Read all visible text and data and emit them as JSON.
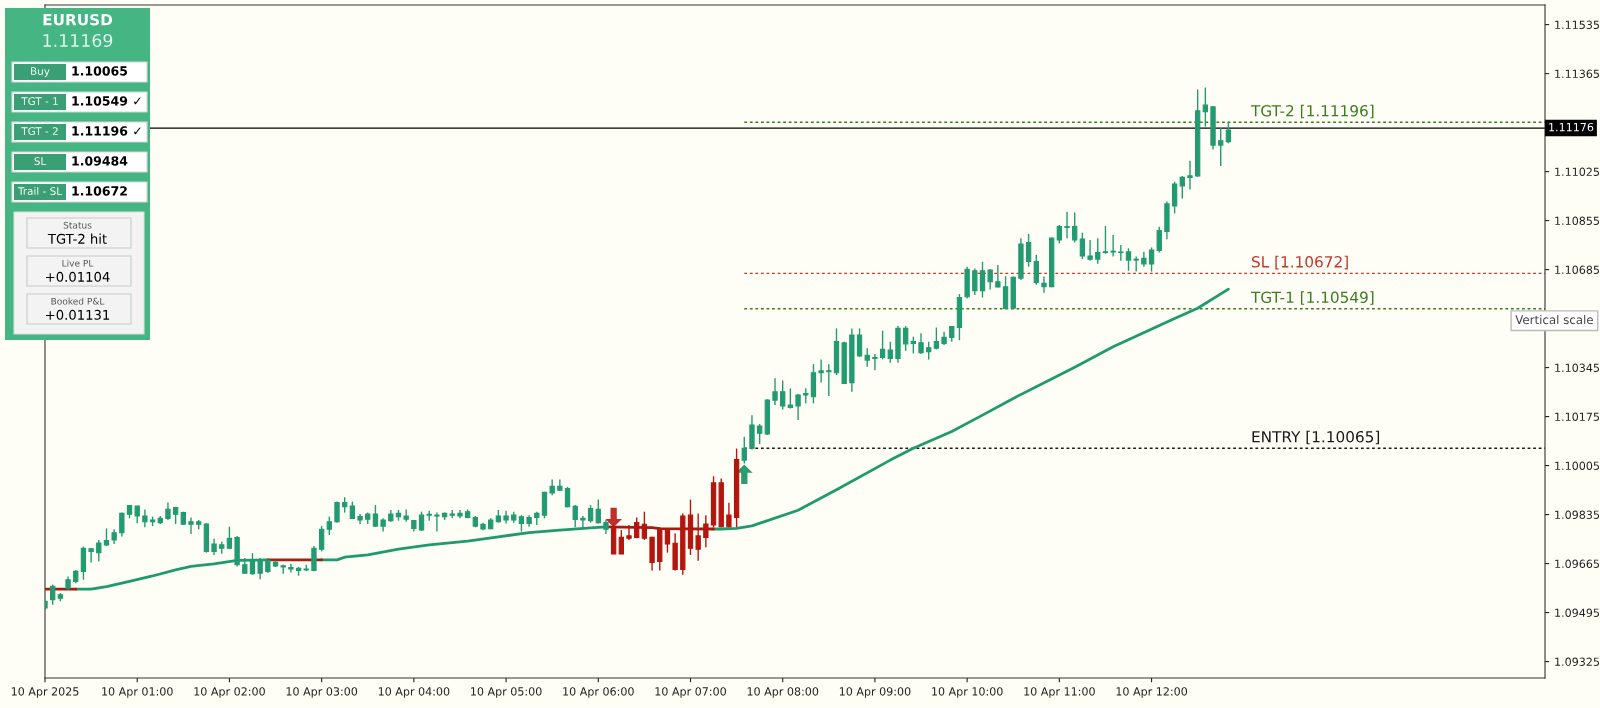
{
  "chart_data": [
    {
      "type": "other",
      "title": "EURUSD",
      "subtitle": "1.11169",
      "categories": [
        "Buy",
        "TGT - 1",
        "TGT - 2",
        "SL",
        "Trail - SL"
      ],
      "value_labels": [
        "1.10065",
        "1.10549 ✓",
        "1.11196 ✓",
        "1.09484",
        "1.10672"
      ],
      "annotations": [
        "Status",
        "TGT-2 hit",
        "Live PL",
        "+0.01104",
        "Booked P&L",
        "+0.01131"
      ]
    },
    {
      "type": "candlestick",
      "x": [
        "2025-04-10T00:00",
        "2025-04-10T00:05",
        "2025-04-10T00:10",
        "2025-04-10T00:15",
        "2025-04-10T00:20",
        "2025-04-10T00:25",
        "2025-04-10T00:30",
        "2025-04-10T00:35",
        "2025-04-10T00:40",
        "2025-04-10T00:45",
        "2025-04-10T00:50",
        "2025-04-10T00:55",
        "2025-04-10T01:00",
        "2025-04-10T01:05",
        "2025-04-10T01:10",
        "2025-04-10T01:15",
        "2025-04-10T01:20",
        "2025-04-10T01:25",
        "2025-04-10T01:30",
        "2025-04-10T01:35",
        "2025-04-10T01:40",
        "2025-04-10T01:45",
        "2025-04-10T01:50",
        "2025-04-10T01:55",
        "2025-04-10T02:00",
        "2025-04-10T02:05",
        "2025-04-10T02:10",
        "2025-04-10T02:15",
        "2025-04-10T02:20",
        "2025-04-10T02:25",
        "2025-04-10T02:30",
        "2025-04-10T02:35",
        "2025-04-10T02:40",
        "2025-04-10T02:45",
        "2025-04-10T02:50",
        "2025-04-10T02:55",
        "2025-04-10T03:00",
        "2025-04-10T03:05",
        "2025-04-10T03:10",
        "2025-04-10T03:15",
        "2025-04-10T03:20",
        "2025-04-10T03:25",
        "2025-04-10T03:30",
        "2025-04-10T03:35",
        "2025-04-10T03:40",
        "2025-04-10T03:45",
        "2025-04-10T03:50",
        "2025-04-10T03:55",
        "2025-04-10T04:00",
        "2025-04-10T04:05",
        "2025-04-10T04:10",
        "2025-04-10T04:15",
        "2025-04-10T04:20",
        "2025-04-10T04:25",
        "2025-04-10T04:30",
        "2025-04-10T04:35",
        "2025-04-10T04:40",
        "2025-04-10T04:45",
        "2025-04-10T04:50",
        "2025-04-10T04:55",
        "2025-04-10T05:00",
        "2025-04-10T05:05",
        "2025-04-10T05:10",
        "2025-04-10T05:15",
        "2025-04-10T05:20",
        "2025-04-10T05:25",
        "2025-04-10T05:30",
        "2025-04-10T05:35",
        "2025-04-10T05:40",
        "2025-04-10T05:45",
        "2025-04-10T05:50",
        "2025-04-10T05:55",
        "2025-04-10T06:00",
        "2025-04-10T06:05",
        "2025-04-10T06:10",
        "2025-04-10T06:15",
        "2025-04-10T06:20",
        "2025-04-10T06:25",
        "2025-04-10T06:30",
        "2025-04-10T06:35",
        "2025-04-10T06:40",
        "2025-04-10T06:45",
        "2025-04-10T06:50",
        "2025-04-10T06:55",
        "2025-04-10T07:00",
        "2025-04-10T07:05",
        "2025-04-10T07:10",
        "2025-04-10T07:15",
        "2025-04-10T07:20",
        "2025-04-10T07:25",
        "2025-04-10T07:30",
        "2025-04-10T07:35",
        "2025-04-10T07:40",
        "2025-04-10T07:45",
        "2025-04-10T07:50",
        "2025-04-10T07:55",
        "2025-04-10T08:00",
        "2025-04-10T08:05",
        "2025-04-10T08:10",
        "2025-04-10T08:15",
        "2025-04-10T08:20",
        "2025-04-10T08:25",
        "2025-04-10T08:30",
        "2025-04-10T08:35",
        "2025-04-10T08:40",
        "2025-04-10T08:45",
        "2025-04-10T08:50",
        "2025-04-10T08:55",
        "2025-04-10T09:00",
        "2025-04-10T09:05",
        "2025-04-10T09:10",
        "2025-04-10T09:15",
        "2025-04-10T09:20",
        "2025-04-10T09:25",
        "2025-04-10T09:30",
        "2025-04-10T09:35",
        "2025-04-10T09:40",
        "2025-04-10T09:45",
        "2025-04-10T09:50",
        "2025-04-10T09:55",
        "2025-04-10T10:00",
        "2025-04-10T10:05",
        "2025-04-10T10:10",
        "2025-04-10T10:15",
        "2025-04-10T10:20",
        "2025-04-10T10:25",
        "2025-04-10T10:30",
        "2025-04-10T10:35",
        "2025-04-10T10:40",
        "2025-04-10T10:45",
        "2025-04-10T10:50",
        "2025-04-10T10:55",
        "2025-04-10T11:00",
        "2025-04-10T11:05",
        "2025-04-10T11:10",
        "2025-04-10T11:15",
        "2025-04-10T11:20",
        "2025-04-10T11:25",
        "2025-04-10T11:30",
        "2025-04-10T11:35",
        "2025-04-10T11:40",
        "2025-04-10T11:45",
        "2025-04-10T11:50",
        "2025-04-10T11:55",
        "2025-04-10T12:00",
        "2025-04-10T12:05",
        "2025-04-10T12:10",
        "2025-04-10T12:15",
        "2025-04-10T12:20",
        "2025-04-10T12:25",
        "2025-04-10T12:30",
        "2025-04-10T12:35",
        "2025-04-10T12:40",
        "2025-04-10T12:45",
        "2025-04-10T12:50"
      ],
      "ohlc": [
        [
          1.09511,
          1.0954,
          1.09505,
          1.09534
        ],
        [
          1.0954,
          1.09592,
          1.09522,
          1.09586
        ],
        [
          1.09545,
          1.09563,
          1.09534,
          1.09557
        ],
        [
          1.0958,
          1.0962,
          1.09574,
          1.09609
        ],
        [
          1.09603,
          1.09643,
          1.09597,
          1.09638
        ],
        [
          1.09638,
          1.09724,
          1.09609,
          1.09718
        ],
        [
          1.09707,
          1.09718,
          1.09669,
          1.09716
        ],
        [
          1.09703,
          1.09747,
          1.09672,
          1.09736
        ],
        [
          1.0973,
          1.09787,
          1.09726,
          1.09745
        ],
        [
          1.09747,
          1.09784,
          1.09733,
          1.09772
        ],
        [
          1.09772,
          1.09842,
          1.09759,
          1.09839
        ],
        [
          1.09836,
          1.09868,
          1.09822,
          1.09866
        ],
        [
          1.0983,
          1.09865,
          1.09805,
          1.09865
        ],
        [
          1.0981,
          1.09853,
          1.09791,
          1.0983
        ],
        [
          1.0981,
          1.09828,
          1.09795,
          1.09816
        ],
        [
          1.09807,
          1.0983,
          1.09802,
          1.09822
        ],
        [
          1.09822,
          1.09877,
          1.09816,
          1.09853
        ],
        [
          1.09836,
          1.09862,
          1.09802,
          1.09859
        ],
        [
          1.09802,
          1.09845,
          1.09799,
          1.09842
        ],
        [
          1.09802,
          1.09825,
          1.09768,
          1.0981
        ],
        [
          1.09802,
          1.09816,
          1.09784,
          1.0981
        ],
        [
          1.09707,
          1.09805,
          1.09703,
          1.09802
        ],
        [
          1.09707,
          1.09751,
          1.09695,
          1.09733
        ],
        [
          1.09718,
          1.09741,
          1.09699,
          1.0973
        ],
        [
          1.09718,
          1.09793,
          1.09715,
          1.09753
        ],
        [
          1.09661,
          1.09761,
          1.09655,
          1.09755
        ],
        [
          1.09632,
          1.09684,
          1.0963,
          1.09661
        ],
        [
          1.0963,
          1.09701,
          1.09626,
          1.09678
        ],
        [
          1.09632,
          1.09684,
          1.09611,
          1.09678
        ],
        [
          1.09638,
          1.0968,
          1.09632,
          1.09676
        ],
        [
          1.09657,
          1.09676,
          1.09653,
          1.09669
        ],
        [
          1.09653,
          1.09661,
          1.0963,
          1.09657
        ],
        [
          1.09646,
          1.09664,
          1.09634,
          1.09651
        ],
        [
          1.09641,
          1.09653,
          1.09623,
          1.09649
        ],
        [
          1.09643,
          1.09661,
          1.09638,
          1.09646
        ],
        [
          1.09641,
          1.09726,
          1.09638,
          1.09718
        ],
        [
          1.09715,
          1.09795,
          1.09707,
          1.09784
        ],
        [
          1.09784,
          1.09828,
          1.09764,
          1.0981
        ],
        [
          1.0981,
          1.0988,
          1.09807,
          1.09877
        ],
        [
          1.09862,
          1.09895,
          1.09842,
          1.09877
        ],
        [
          1.09822,
          1.0988,
          1.09819,
          1.09865
        ],
        [
          1.09816,
          1.09837,
          1.09802,
          1.09828
        ],
        [
          1.09819,
          1.09842,
          1.09802,
          1.09837
        ],
        [
          1.09795,
          1.09868,
          1.09793,
          1.09837
        ],
        [
          1.09795,
          1.09822,
          1.09776,
          1.09816
        ],
        [
          1.09814,
          1.09851,
          1.0981,
          1.09837
        ],
        [
          1.09828,
          1.09851,
          1.09814,
          1.09839
        ],
        [
          1.09819,
          1.09853,
          1.0981,
          1.0983
        ],
        [
          1.09787,
          1.09816,
          1.09776,
          1.09814
        ],
        [
          1.09782,
          1.09845,
          1.09778,
          1.09833
        ],
        [
          1.09833,
          1.09848,
          1.09814,
          1.09836
        ],
        [
          1.0983,
          1.09842,
          1.09776,
          1.09833
        ],
        [
          1.09828,
          1.09842,
          1.09816,
          1.09839
        ],
        [
          1.09833,
          1.09851,
          1.09822,
          1.09837
        ],
        [
          1.0983,
          1.09851,
          1.09822,
          1.09839
        ],
        [
          1.09825,
          1.09853,
          1.09822,
          1.09845
        ],
        [
          1.09795,
          1.0983,
          1.09791,
          1.09825
        ],
        [
          1.09785,
          1.09807,
          1.09781,
          1.09801
        ],
        [
          1.09786,
          1.09822,
          1.09784,
          1.09816
        ],
        [
          1.0981,
          1.09851,
          1.09807,
          1.0983
        ],
        [
          1.09816,
          1.09848,
          1.09804,
          1.0983
        ],
        [
          1.09816,
          1.09845,
          1.09807,
          1.09833
        ],
        [
          1.09804,
          1.09833,
          1.09776,
          1.09827
        ],
        [
          1.09804,
          1.09833,
          1.09793,
          1.09825
        ],
        [
          1.09825,
          1.09845,
          1.09799,
          1.09839
        ],
        [
          1.09833,
          1.09914,
          1.09822,
          1.09912
        ],
        [
          1.0991,
          1.09957,
          1.09902,
          1.09933
        ],
        [
          1.0992,
          1.09957,
          1.09917,
          1.09933
        ],
        [
          1.09862,
          1.09931,
          1.0986,
          1.09925
        ],
        [
          1.09818,
          1.09868,
          1.09791,
          1.09864
        ],
        [
          1.09816,
          1.0983,
          1.09784,
          1.09822
        ],
        [
          1.09814,
          1.09868,
          1.09807,
          1.09856
        ],
        [
          1.09807,
          1.09887,
          1.09804,
          1.09853
        ],
        [
          1.09784,
          1.09816,
          1.09768,
          1.09807
        ],
        [
          1.09791,
          1.09799,
          1.09698,
          1.09698
        ],
        [
          1.09756,
          1.09781,
          1.09698,
          1.09698
        ],
        [
          1.09761,
          1.09799,
          1.09747,
          1.09753
        ],
        [
          1.09807,
          1.09825,
          1.09753,
          1.09756
        ],
        [
          1.09801,
          1.09845,
          1.09747,
          1.09753
        ],
        [
          1.09756,
          1.09758,
          1.09641,
          1.09669
        ],
        [
          1.09784,
          1.09791,
          1.09641,
          1.09672
        ],
        [
          1.09781,
          1.09784,
          1.09703,
          1.09733
        ],
        [
          1.09735,
          1.0977,
          1.09641,
          1.09645
        ],
        [
          1.0983,
          1.09839,
          1.09626,
          1.09645
        ],
        [
          1.09833,
          1.09887,
          1.09695,
          1.09718
        ],
        [
          1.09761,
          1.09839,
          1.09675,
          1.09715
        ],
        [
          1.09802,
          1.09833,
          1.09722,
          1.09756
        ],
        [
          1.09945,
          1.09968,
          1.09791,
          1.09799
        ],
        [
          1.09945,
          1.0996,
          1.09791,
          1.09793
        ],
        [
          1.09833,
          1.09876,
          1.09791,
          1.09793
        ],
        [
          1.10026,
          1.10064,
          1.09791,
          1.09825
        ],
        [
          1.10024,
          1.10105,
          1.10012,
          1.10065
        ],
        [
          1.10065,
          1.1018,
          1.10061,
          1.10146
        ],
        [
          1.10117,
          1.10149,
          1.1008,
          1.10142
        ],
        [
          1.10115,
          1.10235,
          1.10111,
          1.10232
        ],
        [
          1.10232,
          1.10308,
          1.10215,
          1.10261
        ],
        [
          1.10212,
          1.103,
          1.102,
          1.10261
        ],
        [
          1.10207,
          1.10273,
          1.10203,
          1.10215
        ],
        [
          1.10212,
          1.10253,
          1.10163,
          1.1025
        ],
        [
          1.1025,
          1.10273,
          1.10221,
          1.10255
        ],
        [
          1.10244,
          1.10357,
          1.10221,
          1.10327
        ],
        [
          1.10327,
          1.10373,
          1.10293,
          1.10334
        ],
        [
          1.10331,
          1.10357,
          1.10246,
          1.10334
        ],
        [
          1.10327,
          1.10481,
          1.10319,
          1.10435
        ],
        [
          1.1029,
          1.10435,
          1.10288,
          1.10431
        ],
        [
          1.10293,
          1.10481,
          1.10261,
          1.10458
        ],
        [
          1.10385,
          1.10481,
          1.10383,
          1.10458
        ],
        [
          1.10371,
          1.10412,
          1.10348,
          1.10388
        ],
        [
          1.10377,
          1.10392,
          1.10336,
          1.1038
        ],
        [
          1.1038,
          1.10473,
          1.10373,
          1.10408
        ],
        [
          1.10377,
          1.10435,
          1.10362,
          1.10406
        ],
        [
          1.10377,
          1.10489,
          1.10362,
          1.10481
        ],
        [
          1.10427,
          1.10489,
          1.10403,
          1.10481
        ],
        [
          1.10429,
          1.10452,
          1.10394,
          1.10435
        ],
        [
          1.10397,
          1.10464,
          1.10392,
          1.10431
        ],
        [
          1.104,
          1.10435,
          1.10373,
          1.10414
        ],
        [
          1.10412,
          1.10484,
          1.10408,
          1.10435
        ],
        [
          1.10429,
          1.10469,
          1.10423,
          1.1045
        ],
        [
          1.1045,
          1.10489,
          1.10435,
          1.10487
        ],
        [
          1.10484,
          1.106,
          1.1044,
          1.10588
        ],
        [
          1.10591,
          1.10695,
          1.10585,
          1.10686
        ],
        [
          1.10612,
          1.10689,
          1.10597,
          1.10681
        ],
        [
          1.10612,
          1.10712,
          1.10588,
          1.10681
        ],
        [
          1.10643,
          1.10686,
          1.10616,
          1.10683
        ],
        [
          1.10625,
          1.10701,
          1.10623,
          1.10643
        ],
        [
          1.1055,
          1.10662,
          1.10547,
          1.10625
        ],
        [
          1.10551,
          1.10661,
          1.10547,
          1.10658
        ],
        [
          1.10655,
          1.10794,
          1.10649,
          1.10774
        ],
        [
          1.10713,
          1.10809,
          1.10695,
          1.10779
        ],
        [
          1.1064,
          1.10736,
          1.10632,
          1.10713
        ],
        [
          1.10626,
          1.10661,
          1.10605,
          1.10637
        ],
        [
          1.10626,
          1.10796,
          1.10624,
          1.10794
        ],
        [
          1.10788,
          1.1084,
          1.10776,
          1.10834
        ],
        [
          1.10831,
          1.10886,
          1.10794,
          1.10834
        ],
        [
          1.10788,
          1.10883,
          1.10779,
          1.10834
        ],
        [
          1.10732,
          1.10813,
          1.10721,
          1.10791
        ],
        [
          1.10721,
          1.10788,
          1.10716,
          1.10732
        ],
        [
          1.10721,
          1.10794,
          1.10705,
          1.10744
        ],
        [
          1.10744,
          1.10836,
          1.1074,
          1.10747
        ],
        [
          1.10746,
          1.10805,
          1.1073,
          1.10749
        ],
        [
          1.10744,
          1.1077,
          1.10716,
          1.10746
        ],
        [
          1.10718,
          1.10759,
          1.10681,
          1.10747
        ],
        [
          1.10718,
          1.1073,
          1.10678,
          1.10721
        ],
        [
          1.10705,
          1.10747,
          1.10695,
          1.10724
        ],
        [
          1.10705,
          1.10762,
          1.10678,
          1.10753
        ],
        [
          1.10751,
          1.10834,
          1.10744,
          1.1082
        ],
        [
          1.10817,
          1.10921,
          1.1079,
          1.10913
        ],
        [
          1.10906,
          1.1099,
          1.1088,
          1.10982
        ],
        [
          1.10975,
          1.1101,
          1.10932,
          1.11005
        ],
        [
          1.11005,
          1.11063,
          1.10963,
          1.1101
        ],
        [
          1.1101,
          1.1131,
          1.11007,
          1.11236
        ],
        [
          1.11233,
          1.11317,
          1.11181,
          1.11256
        ],
        [
          1.11117,
          1.11252,
          1.11102,
          1.1125
        ],
        [
          1.11117,
          1.11175,
          1.11044,
          1.11132
        ],
        [
          1.11129,
          1.11198,
          1.11123,
          1.11169
        ]
      ],
      "colors": [
        "#229a72",
        "#229a72",
        "#229a72",
        "#229a72",
        "#229a72",
        "#229a72",
        "#229a72",
        "#229a72",
        "#229a72",
        "#229a72",
        "#229a72",
        "#229a72",
        "#229a72",
        "#229a72",
        "#229a72",
        "#229a72",
        "#229a72",
        "#229a72",
        "#229a72",
        "#229a72",
        "#229a72",
        "#229a72",
        "#229a72",
        "#229a72",
        "#229a72",
        "#229a72",
        "#229a72",
        "#229a72",
        "#229a72",
        "#229a72",
        "#229a72",
        "#229a72",
        "#229a72",
        "#229a72",
        "#229a72",
        "#229a72",
        "#229a72",
        "#229a72",
        "#229a72",
        "#229a72",
        "#229a72",
        "#229a72",
        "#229a72",
        "#229a72",
        "#229a72",
        "#229a72",
        "#229a72",
        "#229a72",
        "#229a72",
        "#229a72",
        "#229a72",
        "#229a72",
        "#229a72",
        "#229a72",
        "#229a72",
        "#229a72",
        "#229a72",
        "#229a72",
        "#229a72",
        "#229a72",
        "#229a72",
        "#229a72",
        "#229a72",
        "#229a72",
        "#229a72",
        "#229a72",
        "#229a72",
        "#229a72",
        "#229a72",
        "#229a72",
        "#229a72",
        "#229a72",
        "#229a72",
        "#229a72",
        "#b3160f",
        "#b3160f",
        "#b3160f",
        "#b3160f",
        "#b3160f",
        "#b3160f",
        "#b3160f",
        "#b3160f",
        "#b3160f",
        "#b3160f",
        "#b3160f",
        "#b3160f",
        "#b3160f",
        "#b3160f",
        "#b3160f",
        "#b3160f",
        "#b3160f",
        "#229a72",
        "#229a72",
        "#229a72",
        "#229a72",
        "#229a72",
        "#229a72",
        "#229a72",
        "#229a72",
        "#229a72",
        "#229a72",
        "#229a72",
        "#229a72",
        "#229a72",
        "#229a72",
        "#229a72",
        "#229a72",
        "#229a72",
        "#229a72",
        "#229a72",
        "#229a72",
        "#229a72",
        "#229a72",
        "#229a72",
        "#229a72",
        "#229a72",
        "#229a72",
        "#229a72",
        "#229a72",
        "#229a72",
        "#229a72",
        "#229a72",
        "#229a72",
        "#229a72",
        "#229a72",
        "#229a72",
        "#229a72",
        "#229a72",
        "#229a72",
        "#229a72",
        "#229a72",
        "#229a72",
        "#229a72",
        "#229a72",
        "#229a72",
        "#229a72",
        "#229a72",
        "#229a72",
        "#229a72",
        "#229a72",
        "#229a72",
        "#229a72",
        "#229a72",
        "#229a72",
        "#229a72",
        "#229a72",
        "#229a72",
        "#229a72",
        "#229a72",
        "#229a72",
        "#229a72",
        "#229a72",
        "#229a72",
        "#229a72",
        "#229a72"
      ],
      "series": [
        {
          "type": "line",
          "color": "#1f9a6e",
          "x": [
            "2025-04-10T00:20",
            "2025-04-10T00:30",
            "2025-04-10T00:40",
            "2025-04-10T00:55",
            "2025-04-10T01:10",
            "2025-04-10T01:25",
            "2025-04-10T01:35",
            "2025-04-10T01:50",
            "2025-04-10T02:05",
            "2025-04-10T02:25",
            "2025-04-10T02:40",
            "2025-04-10T03:00",
            "2025-04-10T03:10",
            "2025-04-10T03:15",
            "2025-04-10T03:30",
            "2025-04-10T03:50",
            "2025-04-10T04:10",
            "2025-04-10T04:35",
            "2025-04-10T04:55",
            "2025-04-10T05:15",
            "2025-04-10T05:35",
            "2025-04-10T05:55",
            "2025-04-10T06:05",
            "2025-04-10T06:40",
            "2025-04-10T07:15",
            "2025-04-10T07:20",
            "2025-04-10T07:30",
            "2025-04-10T07:40",
            "2025-04-10T08:10",
            "2025-04-10T08:35",
            "2025-04-10T09:10",
            "2025-04-10T09:25",
            "2025-04-10T09:50",
            "2025-04-10T10:10",
            "2025-04-10T10:30",
            "2025-04-10T11:10",
            "2025-04-10T11:35",
            "2025-04-10T12:15",
            "2025-04-10T12:30",
            "2025-04-10T12:50"
          ],
          "values": [
            1.09576,
            1.09576,
            1.09585,
            1.09603,
            1.09622,
            1.09643,
            1.09655,
            1.09664,
            1.09676,
            1.09678,
            null,
            1.09678,
            1.09678,
            1.09687,
            1.09695,
            1.09715,
            1.0973,
            1.09743,
            1.09758,
            1.09772,
            1.09781,
            1.09789,
            1.09792,
            null,
            1.09785,
            1.09785,
            1.09787,
            1.09796,
            1.0985,
            1.09921,
            1.10024,
            1.10065,
            1.10123,
            1.1018,
            1.10238,
            1.10346,
            1.10417,
            1.10515,
            1.10551,
            1.10617
          ]
        },
        {
          "type": "line",
          "color": "#a51c12",
          "x": [
            "2025-04-10T00:00",
            "2025-04-10T00:20",
            "2025-04-10T01:00",
            "2025-04-10T02:25",
            "2025-04-10T03:00",
            "2025-04-10T04:00",
            "2025-04-10T06:05",
            "2025-04-10T06:35",
            "2025-04-10T06:40",
            "2025-04-10T07:15"
          ],
          "values": [
            1.09576,
            1.09576,
            null,
            1.09678,
            1.09678,
            null,
            1.09792,
            1.0979,
            1.09786,
            1.09785
          ]
        },
        {
          "type": "scatter",
          "color": "#c0302b",
          "marker": "triangle_down",
          "x": [
            "2025-04-10T06:10"
          ],
          "values": [
            1.09825
          ]
        },
        {
          "type": "scatter",
          "color": "#2a9d70",
          "marker": "triangle",
          "x": [
            "2025-04-10T07:35"
          ],
          "values": [
            1.09975
          ]
        }
      ],
      "ref_lines": [
        {
          "axis": "y",
          "value": 1.11196,
          "label": "TGT-2 [1.11196]",
          "color": "#3a7d1e",
          "line_style": "dotted"
        },
        {
          "axis": "y",
          "value": 1.10672,
          "label": "SL [1.10672]",
          "color": "#c0392b",
          "line_style": "dotted"
        },
        {
          "axis": "y",
          "value": 1.10549,
          "label": "TGT-1 [1.10549]",
          "color": "#3a7d1e",
          "line_style": "dotted"
        },
        {
          "axis": "y",
          "value": 1.10065,
          "label": "ENTRY [1.10065]",
          "color": "#1a1a1a",
          "line_style": "dotted"
        },
        {
          "axis": "y",
          "value": 1.11176,
          "label": "1.11176",
          "color": "#000000",
          "line_style": "solid"
        }
      ],
      "annotations": [
        "Vertical scale"
      ],
      "xlim": [
        "2025-04-10T00:00",
        "2025-04-10T16:16"
      ],
      "ylim": [
        1.09268,
        1.11603
      ],
      "xticks": [
        {
          "value": "2025-04-10T00:00",
          "label": "10 Apr 2025"
        },
        {
          "value": "2025-04-10T01:00",
          "label": "10 Apr 01:00"
        },
        {
          "value": "2025-04-10T02:00",
          "label": "10 Apr 02:00"
        },
        {
          "value": "2025-04-10T03:00",
          "label": "10 Apr 03:00"
        },
        {
          "value": "2025-04-10T04:00",
          "label": "10 Apr 04:00"
        },
        {
          "value": "2025-04-10T05:00",
          "label": "10 Apr 05:00"
        },
        {
          "value": "2025-04-10T06:00",
          "label": "10 Apr 06:00"
        },
        {
          "value": "2025-04-10T07:00",
          "label": "10 Apr 07:00"
        },
        {
          "value": "2025-04-10T08:00",
          "label": "10 Apr 08:00"
        },
        {
          "value": "2025-04-10T09:00",
          "label": "10 Apr 09:00"
        },
        {
          "value": "2025-04-10T10:00",
          "label": "10 Apr 10:00"
        },
        {
          "value": "2025-04-10T11:00",
          "label": "10 Apr 11:00"
        },
        {
          "value": "2025-04-10T12:00",
          "label": "10 Apr 12:00"
        }
      ],
      "yticks": [
        1.09325,
        1.09495,
        1.09665,
        1.09835,
        1.10005,
        1.10175,
        1.10345,
        {
          "value": 1.10515,
          "label": null
        },
        1.10685,
        1.10855,
        1.11025,
        {
          "value": 1.11195,
          "label": null
        },
        1.11365,
        1.11535
      ]
    }
  ]
}
